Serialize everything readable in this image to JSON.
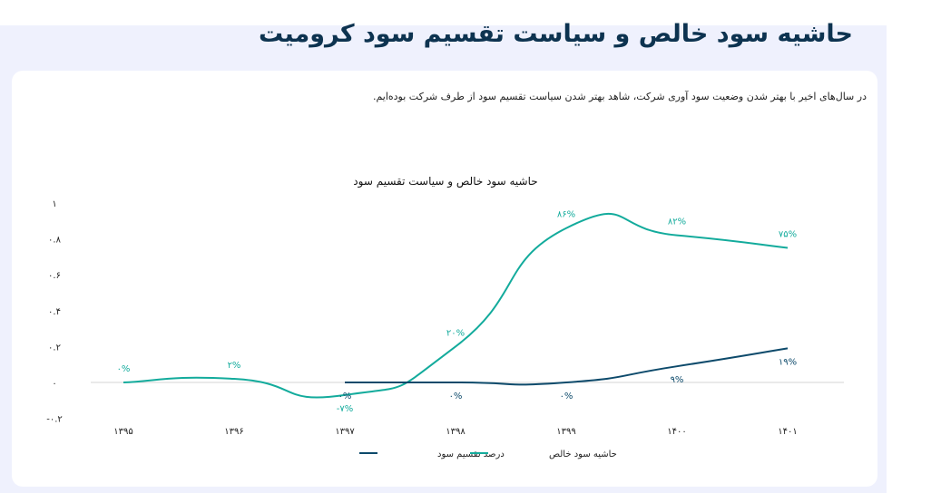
{
  "page_title": "حاشیه سود خالص و سیاست تقسیم سود کرومیت",
  "description": "در سال‌های اخیر با بهتر شدن وضعیت سود آوری شرکت، شاهد بهتر شدن سیاست تقسیم سود از طرف شرکت بوده‌ایم.",
  "chart_data": {
    "type": "line",
    "title": "حاشیه سود خالص و سیاست تقسیم سود",
    "categories": [
      "۱۳۹۵",
      "۱۳۹۶",
      "۱۳۹۷",
      "۱۳۹۸",
      "۱۳۹۹",
      "۱۴۰۰",
      "۱۴۰۱"
    ],
    "ylim": [
      -0.2,
      1
    ],
    "yticks": [
      1,
      0.8,
      0.6,
      0.4,
      0.2,
      0,
      -0.2
    ],
    "ytick_labels": [
      "۱",
      "۰.۸",
      "۰.۶",
      "۰.۴",
      "۰.۲",
      "۰",
      "-۰.۲"
    ],
    "smooth": true,
    "grid": false,
    "legend": "bottom",
    "series": [
      {
        "name": "حاشیه سود خالص",
        "color": "#13ab9c",
        "values": [
          0,
          0.02,
          -0.07,
          0.2,
          0.86,
          0.82,
          0.75
        ],
        "labels": [
          "۰%",
          "۲%",
          "-۷%",
          "۲۰%",
          "۸۶%",
          "۸۲%",
          "۷۵%"
        ]
      },
      {
        "name": "درصد تقسیم سود",
        "color": "#0d4a6b",
        "values": [
          null,
          null,
          0,
          0,
          0,
          0.09,
          0.19
        ],
        "labels": [
          "",
          "",
          "۰%",
          "۰%",
          "۰%",
          "۹%",
          "۱۹%"
        ]
      }
    ]
  }
}
